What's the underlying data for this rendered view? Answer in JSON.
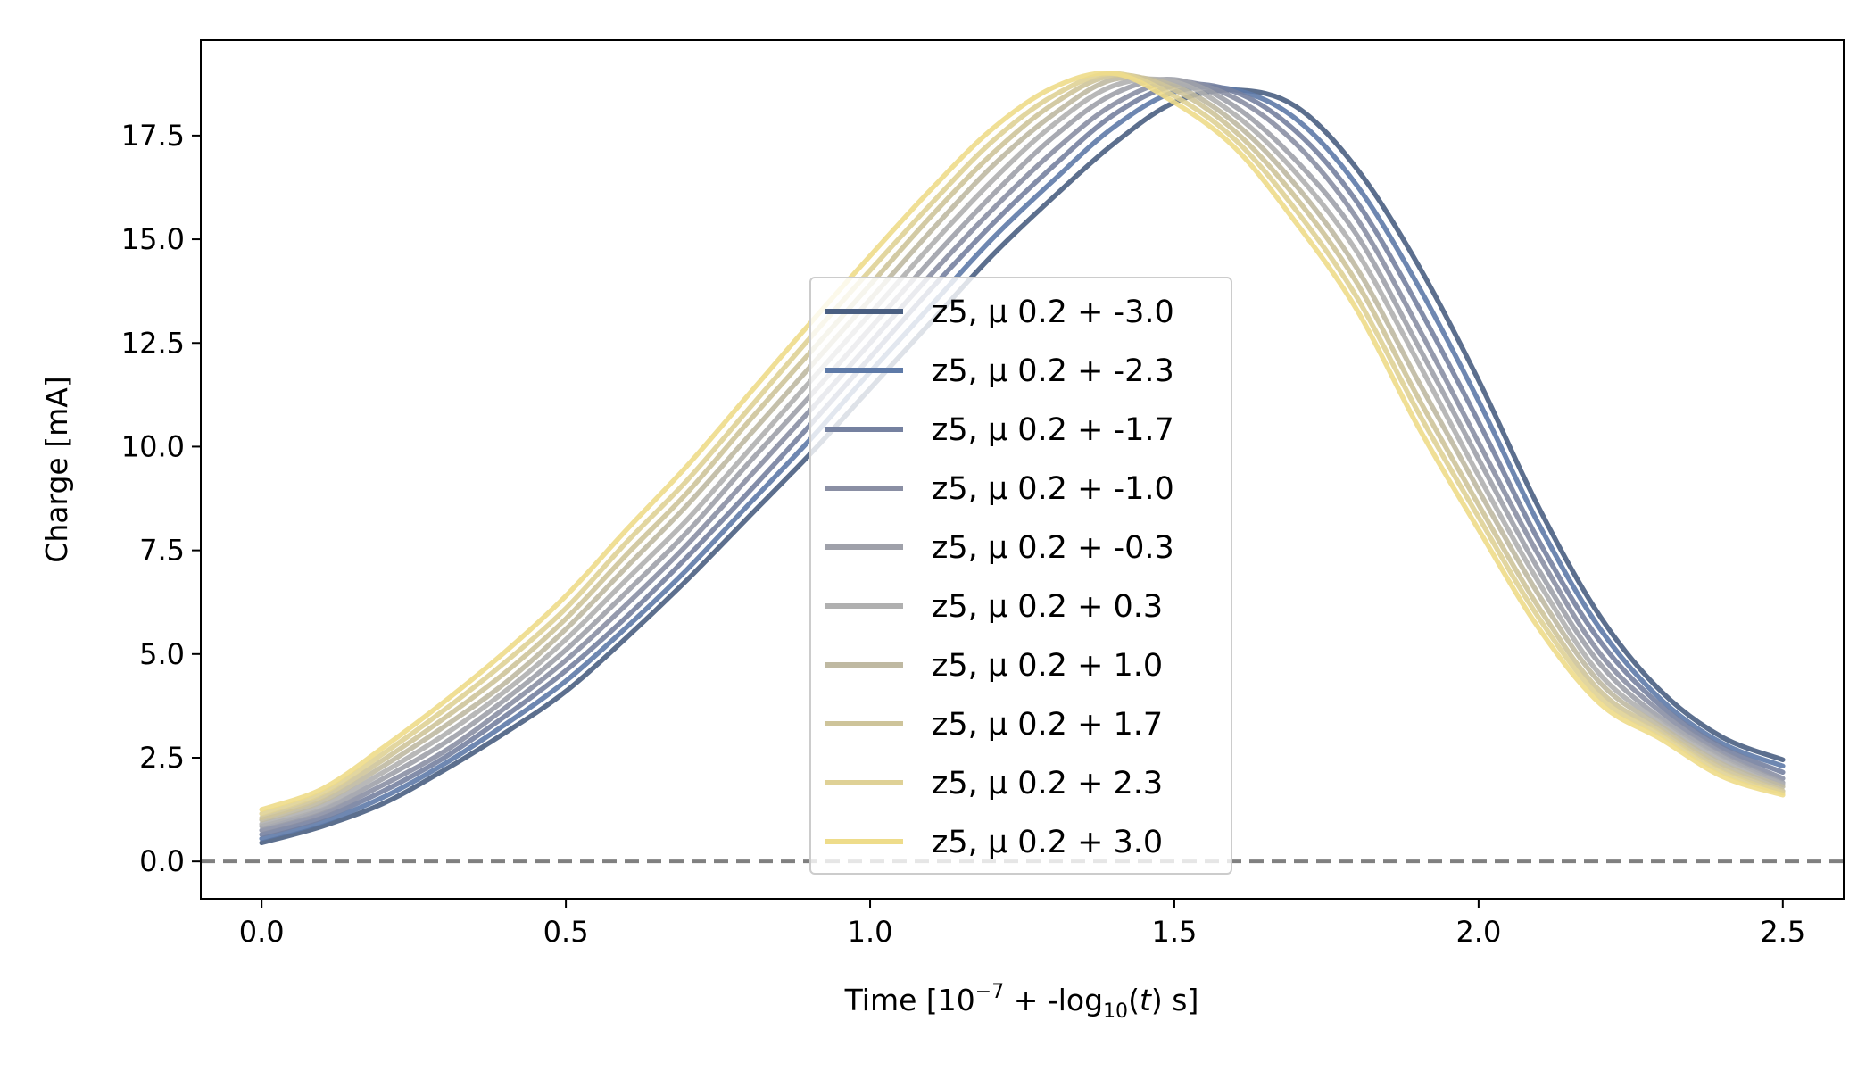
{
  "chart_data": {
    "type": "line",
    "title": "",
    "xlabel": {
      "prefix": "Time [10",
      "exp": "−7",
      "middle": " + -log",
      "sub": "10",
      "open": "(",
      "ital": "t",
      "suffix": ") s]"
    },
    "ylabel": "Charge [mA]",
    "xlim": [
      -0.1,
      2.6
    ],
    "ylim": [
      -0.9,
      19.8
    ],
    "xticks": [
      0.0,
      0.5,
      1.0,
      1.5,
      2.0,
      2.5
    ],
    "xtick_labels": [
      "0.0",
      "0.5",
      "1.0",
      "1.5",
      "2.0",
      "2.5"
    ],
    "yticks": [
      0.0,
      2.5,
      5.0,
      7.5,
      10.0,
      12.5,
      15.0,
      17.5
    ],
    "ytick_labels": [
      "0.0",
      "2.5",
      "5.0",
      "7.5",
      "10.0",
      "12.5",
      "15.0",
      "17.5"
    ],
    "reference_line": {
      "y": 0.0,
      "style": "dashed",
      "color": "#808080"
    },
    "legend_placement": "center",
    "x": [
      0.0,
      0.1,
      0.2,
      0.3,
      0.4,
      0.5,
      0.6,
      0.7,
      0.8,
      0.9,
      1.0,
      1.1,
      1.2,
      1.3,
      1.4,
      1.5,
      1.6,
      1.7,
      1.8,
      1.9,
      2.0,
      2.1,
      2.2,
      2.3,
      2.4,
      2.5
    ],
    "series": [
      {
        "name": "z5, μ 0.2 + -3.0",
        "color": "#4a5f82",
        "values": [
          0.45,
          0.85,
          1.4,
          2.2,
          3.1,
          4.1,
          5.4,
          6.8,
          8.3,
          9.8,
          11.4,
          13.0,
          14.6,
          16.0,
          17.3,
          18.3,
          18.6,
          18.2,
          16.7,
          14.4,
          11.6,
          8.5,
          5.9,
          4.1,
          3.0,
          2.45
        ]
      },
      {
        "name": "z5, μ 0.2 + -2.3",
        "color": "#5e7aa8",
        "values": [
          0.55,
          0.95,
          1.55,
          2.35,
          3.3,
          4.35,
          5.65,
          7.05,
          8.6,
          10.15,
          11.8,
          13.4,
          15.0,
          16.4,
          17.7,
          18.55,
          18.6,
          17.9,
          16.3,
          13.9,
          11.1,
          8.1,
          5.6,
          3.9,
          2.85,
          2.3
        ]
      },
      {
        "name": "z5, μ 0.2 + -1.7",
        "color": "#7581a0",
        "values": [
          0.65,
          1.05,
          1.7,
          2.5,
          3.5,
          4.6,
          5.9,
          7.35,
          8.9,
          10.5,
          12.15,
          13.8,
          15.35,
          16.75,
          18.0,
          18.7,
          18.55,
          17.6,
          15.9,
          13.4,
          10.6,
          7.7,
          5.3,
          3.75,
          2.75,
          2.15
        ]
      },
      {
        "name": "z5, μ 0.2 + -1.0",
        "color": "#8a8fa4",
        "values": [
          0.75,
          1.15,
          1.85,
          2.65,
          3.7,
          4.85,
          6.2,
          7.65,
          9.25,
          10.85,
          12.5,
          14.15,
          15.7,
          17.1,
          18.25,
          18.8,
          18.4,
          17.3,
          15.5,
          12.9,
          10.1,
          7.35,
          5.0,
          3.6,
          2.65,
          2.0
        ]
      },
      {
        "name": "z5, μ 0.2 + -0.3",
        "color": "#9fa1aa",
        "values": [
          0.85,
          1.25,
          2.0,
          2.85,
          3.9,
          5.1,
          6.5,
          7.95,
          9.6,
          11.2,
          12.85,
          14.5,
          16.05,
          17.45,
          18.5,
          18.85,
          18.2,
          16.9,
          15.1,
          12.45,
          9.7,
          7.0,
          4.75,
          3.45,
          2.55,
          1.9
        ]
      },
      {
        "name": "z5, μ 0.2 + 0.3",
        "color": "#b0b0b0",
        "values": [
          0.9,
          1.35,
          2.15,
          3.05,
          4.1,
          5.35,
          6.8,
          8.25,
          9.9,
          11.55,
          13.2,
          14.85,
          16.4,
          17.75,
          18.7,
          18.8,
          18.0,
          16.6,
          14.7,
          12.05,
          9.3,
          6.7,
          4.5,
          3.35,
          2.45,
          1.85
        ]
      },
      {
        "name": "z5, μ 0.2 + 1.0",
        "color": "#bfb9a2",
        "values": [
          1.0,
          1.45,
          2.3,
          3.25,
          4.3,
          5.6,
          7.1,
          8.6,
          10.25,
          11.9,
          13.55,
          15.2,
          16.75,
          18.0,
          18.85,
          18.7,
          17.8,
          16.3,
          14.3,
          11.6,
          8.95,
          6.4,
          4.3,
          3.25,
          2.35,
          1.8
        ]
      },
      {
        "name": "z5, μ 0.2 + 1.7",
        "color": "#cec49a",
        "values": [
          1.05,
          1.55,
          2.45,
          3.45,
          4.55,
          5.85,
          7.4,
          8.9,
          10.6,
          12.25,
          13.9,
          15.55,
          17.05,
          18.25,
          18.95,
          18.6,
          17.6,
          16.0,
          13.95,
          11.2,
          8.6,
          6.1,
          4.1,
          3.15,
          2.25,
          1.7
        ]
      },
      {
        "name": "z5, μ 0.2 + 2.3",
        "color": "#dfd196",
        "values": [
          1.15,
          1.65,
          2.6,
          3.65,
          4.8,
          6.1,
          7.7,
          9.2,
          10.9,
          12.6,
          14.25,
          15.85,
          17.35,
          18.45,
          19.0,
          18.45,
          17.4,
          15.7,
          13.6,
          10.85,
          8.3,
          5.85,
          3.95,
          3.05,
          2.15,
          1.65
        ]
      },
      {
        "name": "z5, μ 0.2 + 3.0",
        "color": "#eedc8a",
        "values": [
          1.25,
          1.75,
          2.75,
          3.85,
          5.05,
          6.4,
          8.0,
          9.55,
          11.25,
          12.95,
          14.6,
          16.2,
          17.65,
          18.65,
          19.0,
          18.3,
          17.2,
          15.4,
          13.3,
          10.5,
          8.0,
          5.6,
          3.8,
          2.95,
          2.05,
          1.6
        ]
      }
    ]
  }
}
